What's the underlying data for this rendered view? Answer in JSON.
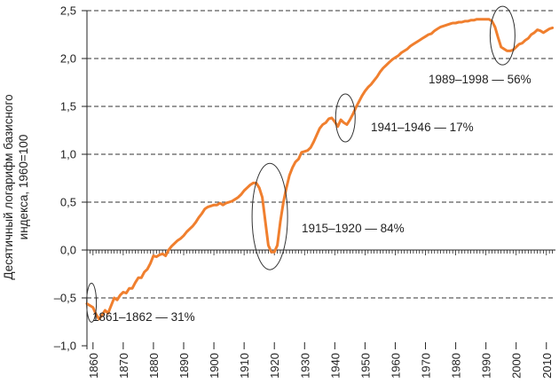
{
  "chart_data": {
    "type": "line",
    "title": "",
    "xlabel": "",
    "ylabel": "Десятичный логарифм базисного индекса, 1960=100",
    "ylabel_lines": [
      "Десятичный логарифм базисного",
      "индекса, 1960=100"
    ],
    "xlim": [
      1858,
      2013
    ],
    "ylim": [
      -1.0,
      2.5
    ],
    "y_ticks": [
      2.5,
      2.0,
      1.5,
      1.0,
      0.5,
      0.0,
      -0.5,
      -1.0
    ],
    "y_tick_labels": [
      "2,5",
      "2,0",
      "1,5",
      "1,0",
      "0,5",
      "0,0",
      "–0,5",
      "–1,0"
    ],
    "x_ticks": [
      1860,
      1870,
      1880,
      1890,
      1900,
      1910,
      1920,
      1930,
      1940,
      1950,
      1960,
      1970,
      1980,
      1990,
      2000,
      2010
    ],
    "x_tick_labels": [
      "1860",
      "1870",
      "1880",
      "1890",
      "1900",
      "1910",
      "1920",
      "1930",
      "1940",
      "1950",
      "1960",
      "1970",
      "1980",
      "1990",
      "2000",
      "2010"
    ],
    "grid": "horizontal dashed",
    "line_color": "#f07f2e",
    "series": [
      {
        "name": "log10 index",
        "x": [
          1858,
          1859,
          1860,
          1861,
          1862,
          1863,
          1864,
          1865,
          1866,
          1867,
          1868,
          1869,
          1870,
          1871,
          1872,
          1873,
          1874,
          1875,
          1876,
          1877,
          1878,
          1879,
          1880,
          1881,
          1882,
          1883,
          1884,
          1885,
          1886,
          1887,
          1888,
          1889,
          1890,
          1891,
          1892,
          1893,
          1894,
          1895,
          1896,
          1897,
          1898,
          1899,
          1900,
          1901,
          1902,
          1903,
          1904,
          1905,
          1906,
          1907,
          1908,
          1909,
          1910,
          1911,
          1912,
          1913,
          1914,
          1915,
          1916,
          1917,
          1918,
          1919,
          1920,
          1921,
          1922,
          1923,
          1924,
          1925,
          1926,
          1927,
          1928,
          1929,
          1930,
          1931,
          1932,
          1933,
          1934,
          1935,
          1936,
          1937,
          1938,
          1939,
          1940,
          1941,
          1942,
          1943,
          1944,
          1945,
          1946,
          1947,
          1948,
          1949,
          1950,
          1951,
          1952,
          1953,
          1954,
          1955,
          1956,
          1957,
          1958,
          1959,
          1960,
          1961,
          1962,
          1963,
          1964,
          1965,
          1966,
          1967,
          1968,
          1969,
          1970,
          1971,
          1972,
          1973,
          1974,
          1975,
          1976,
          1977,
          1978,
          1979,
          1980,
          1981,
          1982,
          1983,
          1984,
          1985,
          1986,
          1987,
          1988,
          1989,
          1990,
          1991,
          1992,
          1993,
          1994,
          1995,
          1996,
          1997,
          1998,
          1999,
          2000,
          2001,
          2002,
          2003,
          2004,
          2005,
          2006,
          2007,
          2008,
          2009,
          2010,
          2011,
          2012
        ],
        "y": [
          -0.56,
          -0.58,
          -0.6,
          -0.67,
          -0.72,
          -0.68,
          -0.63,
          -0.66,
          -0.58,
          -0.5,
          -0.52,
          -0.47,
          -0.44,
          -0.45,
          -0.4,
          -0.4,
          -0.34,
          -0.29,
          -0.29,
          -0.23,
          -0.2,
          -0.14,
          -0.06,
          -0.07,
          -0.05,
          -0.04,
          -0.06,
          0.0,
          0.04,
          0.07,
          0.1,
          0.12,
          0.15,
          0.19,
          0.22,
          0.25,
          0.29,
          0.34,
          0.38,
          0.43,
          0.45,
          0.46,
          0.47,
          0.47,
          0.49,
          0.47,
          0.49,
          0.5,
          0.51,
          0.53,
          0.55,
          0.58,
          0.62,
          0.65,
          0.68,
          0.7,
          0.7,
          0.65,
          0.55,
          0.3,
          0.05,
          -0.02,
          -0.02,
          0.05,
          0.3,
          0.5,
          0.65,
          0.78,
          0.86,
          0.92,
          0.95,
          1.02,
          1.03,
          1.04,
          1.07,
          1.13,
          1.2,
          1.27,
          1.31,
          1.33,
          1.37,
          1.38,
          1.34,
          1.29,
          1.36,
          1.33,
          1.31,
          1.36,
          1.42,
          1.49,
          1.55,
          1.61,
          1.66,
          1.7,
          1.73,
          1.77,
          1.81,
          1.86,
          1.9,
          1.93,
          1.96,
          1.99,
          2.01,
          2.03,
          2.06,
          2.08,
          2.1,
          2.13,
          2.15,
          2.17,
          2.19,
          2.21,
          2.23,
          2.25,
          2.26,
          2.29,
          2.31,
          2.33,
          2.34,
          2.35,
          2.36,
          2.37,
          2.37,
          2.38,
          2.38,
          2.39,
          2.39,
          2.4,
          2.4,
          2.41,
          2.41,
          2.41,
          2.41,
          2.41,
          2.39,
          2.33,
          2.22,
          2.12,
          2.1,
          2.08,
          2.08,
          2.09,
          2.12,
          2.15,
          2.16,
          2.19,
          2.21,
          2.25,
          2.27,
          2.3,
          2.29,
          2.27,
          2.29,
          2.31,
          2.32
        ]
      }
    ],
    "annotations": [
      {
        "label": "1861–1862 — 31%",
        "center_x": 1859.5,
        "center_y": -0.55
      },
      {
        "label": "1915–1920 — 84%",
        "center_x": 1918.5,
        "center_y": 0.35
      },
      {
        "label": "1941–1946 — 17%",
        "center_x": 1943.5,
        "center_y": 1.38
      },
      {
        "label": "1989–1998 — 56%",
        "center_x": 1995.5,
        "center_y": 2.24
      }
    ]
  }
}
